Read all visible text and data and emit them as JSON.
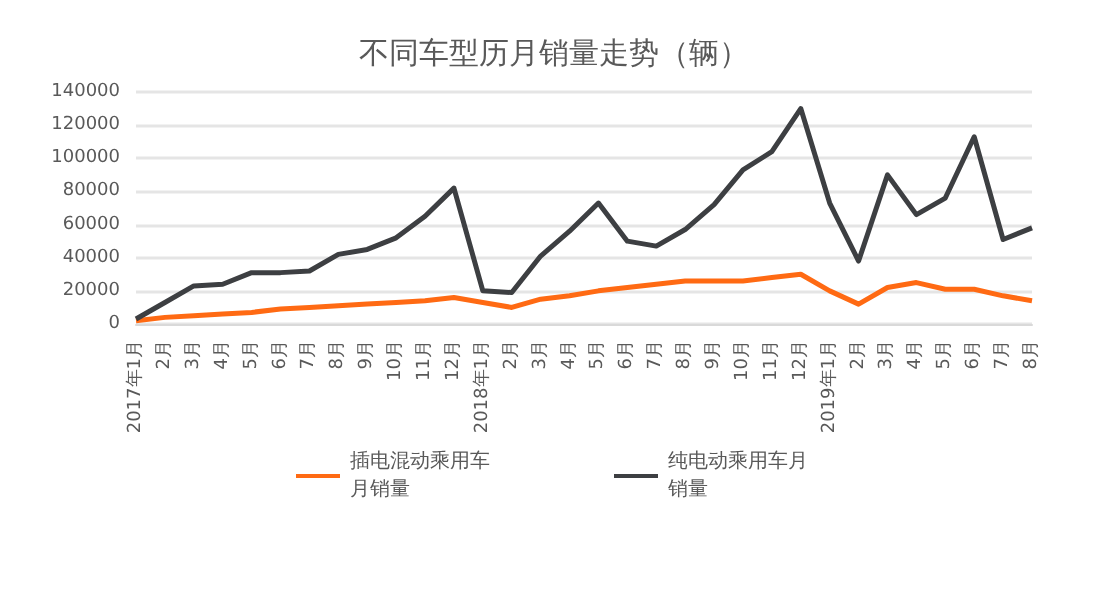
{
  "chart_data": {
    "type": "line",
    "title": "不同车型历月销量走势（辆）",
    "categories": [
      "2017年1月",
      "2月",
      "3月",
      "4月",
      "5月",
      "6月",
      "7月",
      "8月",
      "9月",
      "10月",
      "11月",
      "12月",
      "2018年1月",
      "2月",
      "3月",
      "4月",
      "5月",
      "6月",
      "7月",
      "8月",
      "9月",
      "10月",
      "11月",
      "12月",
      "2019年1月",
      "2月",
      "3月",
      "4月",
      "5月",
      "6月",
      "7月",
      "8月"
    ],
    "series": [
      {
        "name": "插电混动乘用车月销量",
        "color": "#ff6a13",
        "values": [
          2000,
          4000,
          5000,
          6000,
          7000,
          9000,
          10000,
          11000,
          12000,
          13000,
          14000,
          16000,
          13000,
          10000,
          15000,
          17000,
          20000,
          22000,
          24000,
          26000,
          26000,
          26000,
          28000,
          30000,
          20000,
          12000,
          22000,
          25000,
          21000,
          21000,
          17000,
          14000
        ]
      },
      {
        "name": "纯电动乘用车月销量",
        "color": "#3d3f42",
        "values": [
          3000,
          13000,
          23000,
          24000,
          31000,
          31000,
          32000,
          42000,
          45000,
          52000,
          65000,
          82000,
          20000,
          19000,
          41000,
          56000,
          73000,
          50000,
          47000,
          57000,
          72000,
          93000,
          104000,
          130000,
          73000,
          38000,
          90000,
          66000,
          76000,
          113000,
          51000,
          58000
        ]
      }
    ],
    "ylim": [
      0,
      140000
    ],
    "yticks": [
      0,
      20000,
      40000,
      60000,
      80000,
      100000,
      120000,
      140000
    ],
    "grid": "y",
    "legend": "bottom",
    "marker": "none",
    "line_style": "solid"
  }
}
